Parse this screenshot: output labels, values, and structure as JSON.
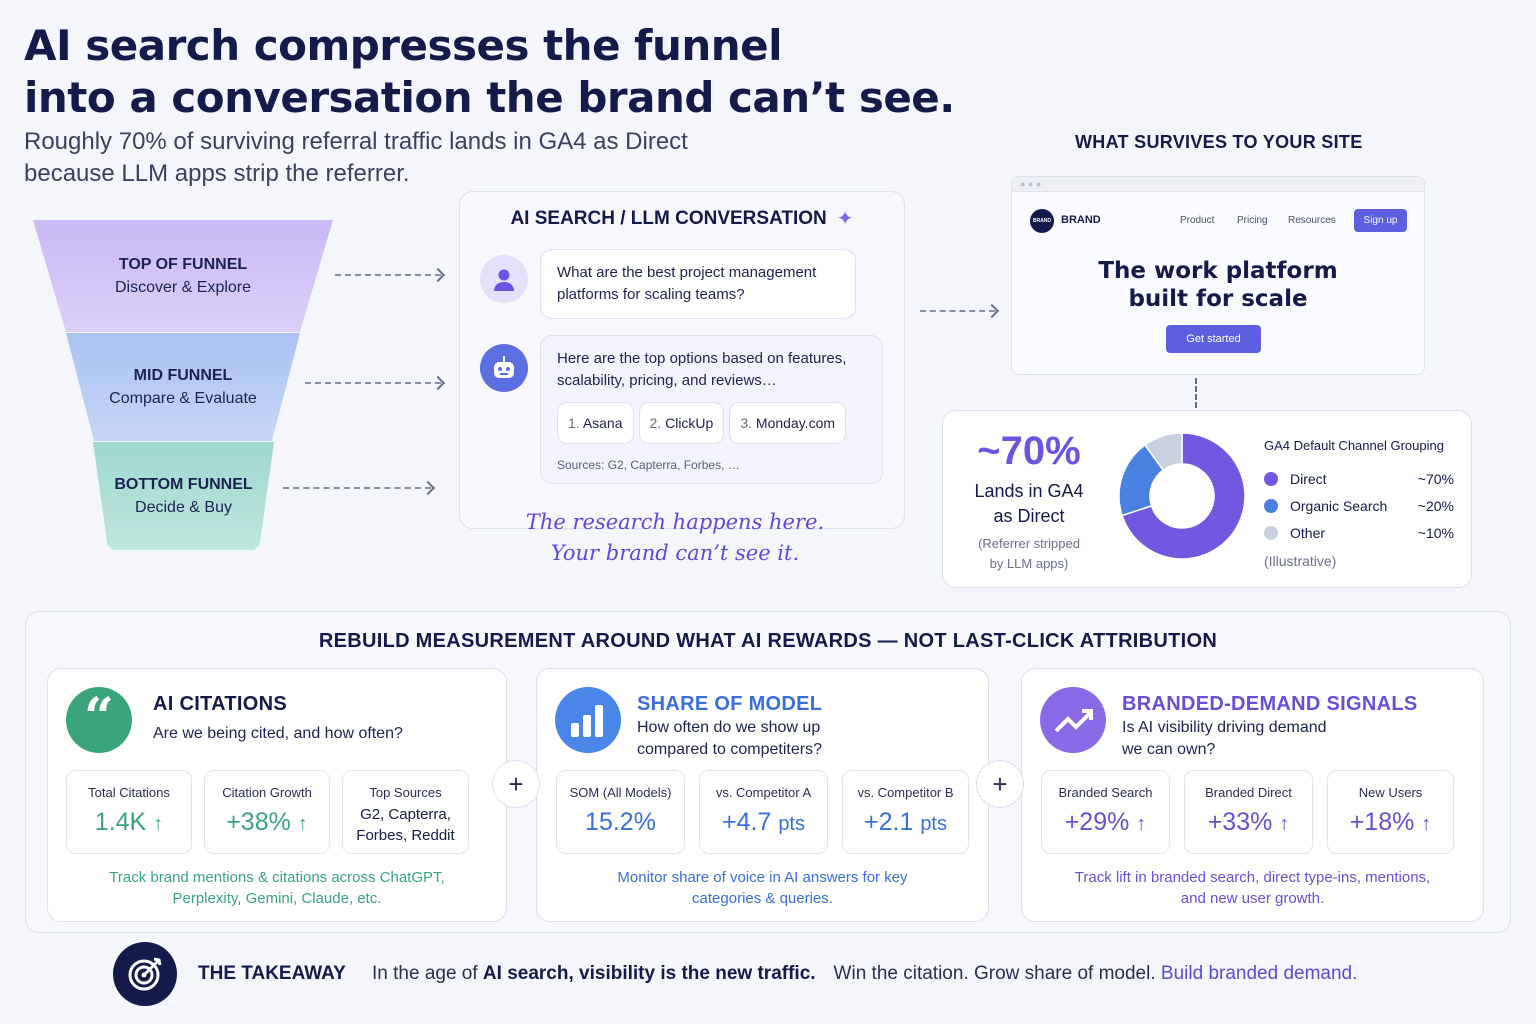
{
  "header": {
    "title_line1": "AI search compresses the funnel",
    "title_line2": "into a conversation the brand can’t see.",
    "subtitle": "Roughly 70% of surviving referral traffic lands in GA4 as Direct because LLM apps strip the referrer."
  },
  "funnel": [
    {
      "stage": "TOP OF FUNNEL",
      "desc": "Discover & Explore"
    },
    {
      "stage": "MID FUNNEL",
      "desc": "Compare & Evaluate"
    },
    {
      "stage": "BOTTOM FUNNEL",
      "desc": "Decide & Buy"
    }
  ],
  "conversation": {
    "title": "AI SEARCH / LLM CONVERSATION",
    "sparkle_icon": "sparkle-icon",
    "question": "What are the best project management platforms for scaling teams?",
    "answer": "Here are the top options based on features, scalability, pricing, and reviews…",
    "options": [
      {
        "num": "1.",
        "name": "Asana"
      },
      {
        "num": "2.",
        "name": "ClickUp"
      },
      {
        "num": "3.",
        "name": "Monday.com"
      }
    ],
    "sources": "Sources: G2, Capterra, Forbes, …",
    "caption_line1": "The research happens here.",
    "caption_line2": "Your brand can’t see it."
  },
  "site": {
    "heading": "WHAT SURVIVES TO YOUR SITE",
    "logo_text": "BRAND",
    "brand": "BRAND",
    "nav": [
      "Product",
      "Pricing",
      "Resources"
    ],
    "signup": "Sign up",
    "hero_line1": "The work platform",
    "hero_line2": "built for scale",
    "cta": "Get started"
  },
  "ga4": {
    "big": "~70%",
    "line1": "Lands in GA4",
    "line2": "as Direct",
    "note1": "(Referrer stripped",
    "note2": "by LLM apps)",
    "legend_title": "GA4 Default Channel Grouping",
    "illustrative": "(Illustrative)",
    "donut": {
      "type": "pie",
      "labels": [
        "Direct",
        "Organic Search",
        "Other"
      ],
      "values": [
        70,
        20,
        10
      ],
      "value_labels": [
        "~70%",
        "~20%",
        "~10%"
      ],
      "colors": [
        "#7357e0",
        "#4a80e0",
        "#c9d0e0"
      ]
    }
  },
  "measure": {
    "title": "REBUILD MEASUREMENT AROUND WHAT AI REWARDS — NOT LAST-CLICK ATTRIBUTION",
    "pillars": [
      {
        "title": "AI CITATIONS",
        "question": "Are we being cited, and how often?",
        "icon": "quote-icon",
        "color": "#3aa57a",
        "stats": [
          {
            "label": "Total Citations",
            "value": "1.4K",
            "arrow": "↑"
          },
          {
            "label": "Citation Growth",
            "value": "+38%",
            "arrow": "↑"
          },
          {
            "label": "Top Sources",
            "value": "G2, Capterra, Forbes, Reddit"
          }
        ],
        "note": "Track brand mentions & citations across ChatGPT, Perplexity, Gemini, Claude, etc."
      },
      {
        "title": "SHARE OF MODEL",
        "question": "How often do we show up compared to competiters?",
        "icon": "bar-chart-icon",
        "color": "#3b6fd8",
        "stats": [
          {
            "label": "SOM (All Models)",
            "value": "15.2%"
          },
          {
            "label": "vs. Competitor A",
            "value": "+4.7",
            "unit": "pts"
          },
          {
            "label": "vs. Competitor B",
            "value": "+2.1",
            "unit": "pts"
          }
        ],
        "note": "Monitor share of voice in AI answers for key categories & queries."
      },
      {
        "title": "BRANDED-DEMAND SIGNALS",
        "question": "Is AI visibility driving demand we can own?",
        "icon": "trend-up-icon",
        "color": "#6a4fd6",
        "stats": [
          {
            "label": "Branded Search",
            "value": "+29%",
            "arrow": "↑"
          },
          {
            "label": "Branded Direct",
            "value": "+33%",
            "arrow": "↑"
          },
          {
            "label": "New Users",
            "value": "+18%",
            "arrow": "↑"
          }
        ],
        "note": "Track lift in branded search, direct type-ins, mentions, and new user growth."
      }
    ]
  },
  "takeaway": {
    "label": "THE TAKEAWAY",
    "t1": "In the age of ",
    "t2": "AI search, visibility is the new traffic.",
    "t3": "Win the citation. Grow share of model. ",
    "t4": "Build branded demand."
  }
}
